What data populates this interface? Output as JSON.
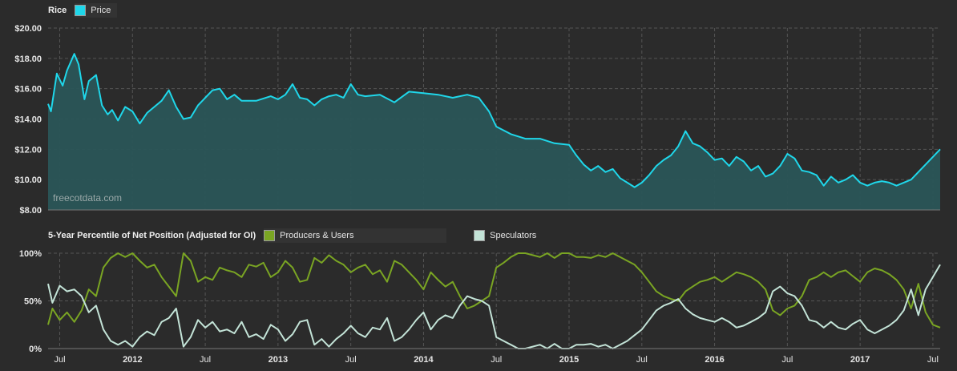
{
  "colors": {
    "background": "#2b2b2b",
    "grid": "#555555",
    "price_line": "#1fd7ea",
    "price_fill": "#2a5557",
    "producers": "#7aa523",
    "speculators": "#c3e3d7"
  },
  "watermark": "freecotdata.com",
  "chart_data": [
    {
      "type": "area",
      "title": "Rice",
      "legend": [
        {
          "name": "Price",
          "color": "#1fd7ea"
        }
      ],
      "ylim": [
        8,
        20
      ],
      "yticks": [
        "$20.00",
        "$18.00",
        "$16.00",
        "$14.00",
        "$12.00",
        "$10.00",
        "$8.00"
      ],
      "ytick_values": [
        20,
        18,
        16,
        14,
        12,
        10,
        8
      ],
      "xlim": [
        2011.42,
        2017.55
      ],
      "x_tick_labels": [
        "Jul",
        "2012",
        "Jul",
        "2013",
        "Jul",
        "2014",
        "Jul",
        "2015",
        "Jul",
        "2016",
        "Jul",
        "2017",
        "Jul"
      ],
      "x_tick_values": [
        2011.5,
        2012.0,
        2012.5,
        2013.0,
        2013.5,
        2014.0,
        2014.5,
        2015.0,
        2015.5,
        2016.0,
        2016.5,
        2017.0,
        2017.5
      ],
      "grid": true,
      "series": [
        {
          "name": "Price",
          "x": [
            2011.42,
            2011.44,
            2011.48,
            2011.52,
            2011.55,
            2011.6,
            2011.63,
            2011.67,
            2011.7,
            2011.75,
            2011.79,
            2011.83,
            2011.86,
            2011.9,
            2011.95,
            2012.0,
            2012.05,
            2012.1,
            2012.15,
            2012.2,
            2012.25,
            2012.3,
            2012.35,
            2012.4,
            2012.45,
            2012.5,
            2012.55,
            2012.6,
            2012.65,
            2012.7,
            2012.75,
            2012.85,
            2012.95,
            2013.0,
            2013.05,
            2013.1,
            2013.15,
            2013.2,
            2013.25,
            2013.3,
            2013.35,
            2013.4,
            2013.45,
            2013.5,
            2013.55,
            2013.6,
            2013.7,
            2013.8,
            2013.9,
            2014.0,
            2014.1,
            2014.2,
            2014.3,
            2014.38,
            2014.45,
            2014.5,
            2014.6,
            2014.7,
            2014.8,
            2014.9,
            2015.0,
            2015.05,
            2015.1,
            2015.15,
            2015.2,
            2015.25,
            2015.3,
            2015.35,
            2015.4,
            2015.45,
            2015.5,
            2015.55,
            2015.6,
            2015.65,
            2015.7,
            2015.75,
            2015.8,
            2015.85,
            2015.9,
            2015.95,
            2016.0,
            2016.05,
            2016.1,
            2016.15,
            2016.2,
            2016.25,
            2016.3,
            2016.35,
            2016.4,
            2016.45,
            2016.5,
            2016.55,
            2016.6,
            2016.65,
            2016.7,
            2016.75,
            2016.8,
            2016.85,
            2016.9,
            2016.95,
            2017.0,
            2017.05,
            2017.1,
            2017.15,
            2017.2,
            2017.25,
            2017.3,
            2017.35,
            2017.4,
            2017.45,
            2017.5,
            2017.55
          ],
          "values": [
            15.0,
            14.5,
            17.0,
            16.2,
            17.2,
            18.3,
            17.6,
            15.3,
            16.5,
            16.9,
            14.9,
            14.3,
            14.6,
            13.9,
            14.8,
            14.5,
            13.7,
            14.4,
            14.8,
            15.2,
            15.9,
            14.8,
            14.0,
            14.1,
            14.9,
            15.4,
            15.9,
            16.0,
            15.3,
            15.6,
            15.2,
            15.2,
            15.5,
            15.3,
            15.6,
            16.3,
            15.4,
            15.3,
            14.9,
            15.3,
            15.5,
            15.6,
            15.4,
            16.3,
            15.6,
            15.5,
            15.6,
            15.1,
            15.8,
            15.7,
            15.6,
            15.4,
            15.6,
            15.4,
            14.5,
            13.5,
            13.0,
            12.7,
            12.7,
            12.4,
            12.3,
            11.6,
            11.0,
            10.6,
            10.9,
            10.5,
            10.7,
            10.1,
            9.8,
            9.5,
            9.8,
            10.3,
            10.9,
            11.3,
            11.6,
            12.2,
            13.2,
            12.4,
            12.2,
            11.8,
            11.3,
            11.4,
            10.9,
            11.5,
            11.2,
            10.6,
            10.9,
            10.2,
            10.4,
            10.9,
            11.7,
            11.4,
            10.6,
            10.5,
            10.3,
            9.6,
            10.2,
            9.8,
            10.0,
            10.3,
            9.8,
            9.6,
            9.8,
            9.9,
            9.8,
            9.6,
            9.8,
            10.0,
            10.5,
            11.0,
            11.5,
            12.0
          ]
        }
      ]
    },
    {
      "type": "line",
      "title": "5-Year Percentile of Net Position (Adjusted for OI)",
      "legend": [
        {
          "name": "Producers & Users",
          "color": "#7aa523"
        },
        {
          "name": "Speculators",
          "color": "#c3e3d7"
        }
      ],
      "ylim": [
        0,
        100
      ],
      "yticks": [
        "100%",
        "50%",
        "0%"
      ],
      "ytick_values": [
        100,
        50,
        0
      ],
      "xlim": [
        2011.42,
        2017.55
      ],
      "grid": true,
      "x": [
        2011.42,
        2011.45,
        2011.5,
        2011.55,
        2011.6,
        2011.65,
        2011.7,
        2011.75,
        2011.8,
        2011.85,
        2011.9,
        2011.95,
        2012.0,
        2012.05,
        2012.1,
        2012.15,
        2012.2,
        2012.25,
        2012.3,
        2012.35,
        2012.4,
        2012.45,
        2012.5,
        2012.55,
        2012.6,
        2012.65,
        2012.7,
        2012.75,
        2012.8,
        2012.85,
        2012.9,
        2012.95,
        2013.0,
        2013.05,
        2013.1,
        2013.15,
        2013.2,
        2013.25,
        2013.3,
        2013.35,
        2013.4,
        2013.45,
        2013.5,
        2013.55,
        2013.6,
        2013.65,
        2013.7,
        2013.75,
        2013.8,
        2013.85,
        2013.9,
        2013.95,
        2014.0,
        2014.05,
        2014.1,
        2014.15,
        2014.2,
        2014.25,
        2014.3,
        2014.35,
        2014.4,
        2014.45,
        2014.5,
        2014.55,
        2014.6,
        2014.65,
        2014.7,
        2014.75,
        2014.8,
        2014.85,
        2014.9,
        2014.95,
        2015.0,
        2015.05,
        2015.1,
        2015.15,
        2015.2,
        2015.25,
        2015.3,
        2015.35,
        2015.4,
        2015.45,
        2015.5,
        2015.55,
        2015.6,
        2015.65,
        2015.7,
        2015.75,
        2015.8,
        2015.85,
        2015.9,
        2015.95,
        2016.0,
        2016.05,
        2016.1,
        2016.15,
        2016.2,
        2016.25,
        2016.3,
        2016.35,
        2016.4,
        2016.45,
        2016.5,
        2016.55,
        2016.6,
        2016.65,
        2016.7,
        2016.75,
        2016.8,
        2016.85,
        2016.9,
        2016.95,
        2017.0,
        2017.05,
        2017.1,
        2017.15,
        2017.2,
        2017.25,
        2017.3,
        2017.35,
        2017.4,
        2017.45,
        2017.5,
        2017.55
      ],
      "series": [
        {
          "name": "Producers & Users",
          "values": [
            25,
            42,
            30,
            38,
            28,
            40,
            62,
            55,
            85,
            95,
            100,
            96,
            100,
            92,
            85,
            88,
            75,
            65,
            55,
            100,
            92,
            70,
            75,
            72,
            85,
            82,
            80,
            75,
            88,
            86,
            90,
            75,
            80,
            92,
            85,
            70,
            72,
            95,
            90,
            98,
            92,
            88,
            80,
            85,
            88,
            78,
            82,
            70,
            92,
            88,
            80,
            72,
            62,
            80,
            72,
            65,
            70,
            55,
            42,
            45,
            50,
            55,
            85,
            90,
            96,
            100,
            100,
            98,
            96,
            100,
            95,
            100,
            100,
            96,
            96,
            95,
            98,
            96,
            100,
            96,
            92,
            88,
            80,
            70,
            60,
            55,
            52,
            50,
            60,
            65,
            70,
            72,
            75,
            70,
            75,
            80,
            78,
            75,
            70,
            62,
            40,
            35,
            42,
            45,
            55,
            72,
            75,
            80,
            75,
            80,
            82,
            76,
            70,
            80,
            84,
            82,
            78,
            72,
            62,
            42,
            68,
            38,
            25,
            22
          ]
        },
        {
          "name": "Speculators",
          "values": [
            68,
            48,
            66,
            60,
            62,
            55,
            38,
            45,
            20,
            8,
            4,
            8,
            2,
            12,
            18,
            14,
            28,
            32,
            42,
            2,
            12,
            30,
            22,
            28,
            18,
            20,
            16,
            28,
            12,
            15,
            10,
            25,
            20,
            8,
            15,
            28,
            30,
            4,
            10,
            2,
            10,
            16,
            24,
            16,
            12,
            22,
            20,
            32,
            8,
            12,
            20,
            30,
            38,
            20,
            30,
            35,
            32,
            45,
            55,
            52,
            50,
            45,
            12,
            8,
            4,
            0,
            0,
            2,
            4,
            0,
            5,
            0,
            0,
            4,
            4,
            5,
            2,
            4,
            0,
            4,
            8,
            14,
            20,
            30,
            40,
            45,
            48,
            52,
            42,
            36,
            32,
            30,
            28,
            32,
            28,
            22,
            24,
            28,
            32,
            38,
            60,
            65,
            58,
            55,
            45,
            30,
            28,
            22,
            28,
            22,
            20,
            26,
            30,
            20,
            16,
            20,
            24,
            30,
            40,
            62,
            35,
            62,
            75,
            88
          ]
        }
      ]
    }
  ]
}
